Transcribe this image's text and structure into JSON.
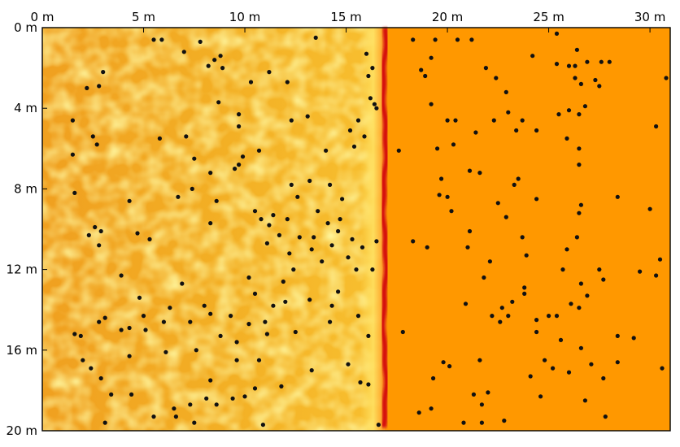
{
  "chart_data": {
    "type": "scatter",
    "title": "",
    "xlabel": "",
    "ylabel": "",
    "x_ticks": [
      "0 m",
      "5 m",
      "10 m",
      "15 m",
      "20 m",
      "25 m",
      "30 m"
    ],
    "y_ticks": [
      "0 m",
      "4 m",
      "8 m",
      "12 m",
      "16 m",
      "20 m"
    ],
    "xlim": [
      0,
      31
    ],
    "ylim": [
      0,
      20
    ],
    "y_direction": "down",
    "x_axis_position": "top",
    "grid": false,
    "background": {
      "kind": "wave-field",
      "left_region_colors": [
        "#f0a020",
        "#f5c030",
        "#ffd84a"
      ],
      "wavefront_x_m": 16.9,
      "wavefront_color": "#d41010",
      "right_region_color": "#ff9800"
    },
    "marker_color": "#111111",
    "points": [
      [
        5.5,
        0.6
      ],
      [
        5.9,
        0.6
      ],
      [
        7.8,
        0.7
      ],
      [
        13.5,
        0.5
      ],
      [
        7,
        1.2
      ],
      [
        8.8,
        1.4
      ],
      [
        8.5,
        1.6
      ],
      [
        8.2,
        1.9
      ],
      [
        8.9,
        2
      ],
      [
        11.2,
        2.2
      ],
      [
        3,
        2.2
      ],
      [
        2.8,
        2.9
      ],
      [
        2.2,
        3
      ],
      [
        10.3,
        2.7
      ],
      [
        12.1,
        2.7
      ],
      [
        16,
        1.3
      ],
      [
        16.3,
        2
      ],
      [
        16.1,
        2.4
      ],
      [
        16.2,
        3.5
      ],
      [
        16.4,
        3.8
      ],
      [
        16.5,
        4
      ],
      [
        8.7,
        3.7
      ],
      [
        9.7,
        4.3
      ],
      [
        12.3,
        4.6
      ],
      [
        9.7,
        4.9
      ],
      [
        15.6,
        4.6
      ],
      [
        13.1,
        4.4
      ],
      [
        15.2,
        5.1
      ],
      [
        15.9,
        5.4
      ],
      [
        15.4,
        5.9
      ],
      [
        1.5,
        4.6
      ],
      [
        2.5,
        5.4
      ],
      [
        2.7,
        5.8
      ],
      [
        1.5,
        6.3
      ],
      [
        5.8,
        5.5
      ],
      [
        7.1,
        5.4
      ],
      [
        7.5,
        6.5
      ],
      [
        8.3,
        7.2
      ],
      [
        9.5,
        7
      ],
      [
        9.7,
        6.8
      ],
      [
        9.9,
        6.4
      ],
      [
        10.7,
        6.1
      ],
      [
        14,
        6.1
      ],
      [
        13.2,
        7.6
      ],
      [
        14.2,
        7.8
      ],
      [
        12.3,
        7.8
      ],
      [
        12.6,
        8.4
      ],
      [
        6.7,
        8.4
      ],
      [
        7.4,
        8
      ],
      [
        4.3,
        8.6
      ],
      [
        1.6,
        8.2
      ],
      [
        8.6,
        8.6
      ],
      [
        10.5,
        9.1
      ],
      [
        11.4,
        9.3
      ],
      [
        11.2,
        9.8
      ],
      [
        12.1,
        9.5
      ],
      [
        11.7,
        10.3
      ],
      [
        12.7,
        10.4
      ],
      [
        13.4,
        10.4
      ],
      [
        13.6,
        9.1
      ],
      [
        14.1,
        9.7
      ],
      [
        14.7,
        9.5
      ],
      [
        14.8,
        8.5
      ],
      [
        14.6,
        10.1
      ],
      [
        15.3,
        10.5
      ],
      [
        15.8,
        10.9
      ],
      [
        16.5,
        10.6
      ],
      [
        2.6,
        9.9
      ],
      [
        2.9,
        10.1
      ],
      [
        2.3,
        10.3
      ],
      [
        4.7,
        10.2
      ],
      [
        8.3,
        9.7
      ],
      [
        10.8,
        9.5
      ],
      [
        11.1,
        10.7
      ],
      [
        13.3,
        11
      ],
      [
        14.3,
        10.8
      ],
      [
        5.3,
        10.5
      ],
      [
        2.8,
        10.8
      ],
      [
        12.2,
        11.2
      ],
      [
        13.8,
        11.6
      ],
      [
        15.1,
        11.4
      ],
      [
        15.5,
        12
      ],
      [
        16.3,
        12
      ],
      [
        12.4,
        12
      ],
      [
        3.9,
        12.3
      ],
      [
        6.9,
        12.7
      ],
      [
        10.2,
        12.4
      ],
      [
        11.9,
        12.6
      ],
      [
        10.5,
        13.2
      ],
      [
        12,
        13.6
      ],
      [
        14.6,
        13.1
      ],
      [
        4.8,
        13.4
      ],
      [
        6.3,
        13.9
      ],
      [
        8,
        13.8
      ],
      [
        11.4,
        13.8
      ],
      [
        13.2,
        13.5
      ],
      [
        14.3,
        13.8
      ],
      [
        1.6,
        15.2
      ],
      [
        1.9,
        15.3
      ],
      [
        2.8,
        14.6
      ],
      [
        3.1,
        14.4
      ],
      [
        3.9,
        15
      ],
      [
        4.3,
        14.9
      ],
      [
        5,
        14.3
      ],
      [
        5.1,
        15
      ],
      [
        6,
        14.6
      ],
      [
        7.3,
        14.6
      ],
      [
        8.3,
        14.2
      ],
      [
        9.3,
        14.3
      ],
      [
        10.2,
        14.7
      ],
      [
        11,
        14.6
      ],
      [
        11.1,
        15.2
      ],
      [
        12.5,
        15.1
      ],
      [
        14.2,
        14.6
      ],
      [
        15.6,
        14.3
      ],
      [
        16.1,
        15.3
      ],
      [
        8.8,
        15.3
      ],
      [
        9.6,
        15.6
      ],
      [
        7.6,
        16
      ],
      [
        6.1,
        16.1
      ],
      [
        4.3,
        16.3
      ],
      [
        2,
        16.5
      ],
      [
        2.4,
        16.9
      ],
      [
        9.6,
        16.5
      ],
      [
        10.7,
        16.5
      ],
      [
        13.3,
        17
      ],
      [
        15.1,
        16.7
      ],
      [
        15.7,
        17.6
      ],
      [
        16.1,
        17.7
      ],
      [
        2.9,
        17.4
      ],
      [
        3.4,
        18.2
      ],
      [
        4.4,
        18.2
      ],
      [
        8.3,
        17.5
      ],
      [
        10.5,
        17.9
      ],
      [
        11.8,
        17.8
      ],
      [
        10,
        18.3
      ],
      [
        9.4,
        18.4
      ],
      [
        8.1,
        18.4
      ],
      [
        8.6,
        18.7
      ],
      [
        6.5,
        18.9
      ],
      [
        7.3,
        18.7
      ],
      [
        5.5,
        19.3
      ],
      [
        6.6,
        19.3
      ],
      [
        7.5,
        19.6
      ],
      [
        3.1,
        19.6
      ],
      [
        10.9,
        19.7
      ],
      [
        16.6,
        19.7
      ],
      [
        18.3,
        0.6
      ],
      [
        19.4,
        0.6
      ],
      [
        20.5,
        0.6
      ],
      [
        21.2,
        0.6
      ],
      [
        25.4,
        0.3
      ],
      [
        26.4,
        1.1
      ],
      [
        24.2,
        1.4
      ],
      [
        26,
        1.9
      ],
      [
        26.3,
        1.9
      ],
      [
        26.9,
        1.7
      ],
      [
        27.6,
        1.7
      ],
      [
        28,
        1.7
      ],
      [
        19.2,
        1.5
      ],
      [
        18.7,
        2.1
      ],
      [
        18.9,
        2.4
      ],
      [
        21.9,
        2
      ],
      [
        22.4,
        2.5
      ],
      [
        25.4,
        1.8
      ],
      [
        27.3,
        2.6
      ],
      [
        27.5,
        2.9
      ],
      [
        26.6,
        2.8
      ],
      [
        26.3,
        2.5
      ],
      [
        30.8,
        2.5
      ],
      [
        22.9,
        3.2
      ],
      [
        19.2,
        3.8
      ],
      [
        20,
        4.6
      ],
      [
        20.4,
        4.6
      ],
      [
        22.3,
        4.6
      ],
      [
        23,
        4.2
      ],
      [
        23.7,
        4.6
      ],
      [
        25.5,
        4.3
      ],
      [
        26,
        4.1
      ],
      [
        26.8,
        3.9
      ],
      [
        26.5,
        4.3
      ],
      [
        30.3,
        4.9
      ],
      [
        19.5,
        6
      ],
      [
        20.3,
        5.8
      ],
      [
        21.4,
        5.2
      ],
      [
        23.4,
        5.1
      ],
      [
        24.4,
        5.1
      ],
      [
        25.9,
        5.5
      ],
      [
        26.5,
        6
      ],
      [
        26.5,
        6.8
      ],
      [
        17.6,
        6.1
      ],
      [
        21.1,
        7.1
      ],
      [
        21.6,
        7.2
      ],
      [
        19.7,
        7.5
      ],
      [
        23.5,
        7.5
      ],
      [
        23.3,
        7.8
      ],
      [
        19.6,
        8.3
      ],
      [
        20,
        8.4
      ],
      [
        22.5,
        8.7
      ],
      [
        24.4,
        8.5
      ],
      [
        26.6,
        8.8
      ],
      [
        26.5,
        9.2
      ],
      [
        28.4,
        8.4
      ],
      [
        30,
        9
      ],
      [
        20.2,
        9.1
      ],
      [
        22.9,
        9.4
      ],
      [
        21.1,
        10.1
      ],
      [
        23.7,
        10.4
      ],
      [
        26.4,
        10.4
      ],
      [
        18.3,
        10.6
      ],
      [
        19,
        10.9
      ],
      [
        21,
        10.9
      ],
      [
        25.9,
        11
      ],
      [
        22.1,
        11.6
      ],
      [
        23.9,
        11.3
      ],
      [
        25.7,
        12
      ],
      [
        27.5,
        12
      ],
      [
        27.7,
        12.5
      ],
      [
        30.5,
        11.5
      ],
      [
        29.5,
        12.1
      ],
      [
        30.3,
        12.3
      ],
      [
        21.8,
        12.4
      ],
      [
        23.8,
        12.9
      ],
      [
        23.8,
        13.2
      ],
      [
        26.6,
        12.7
      ],
      [
        26.9,
        13.3
      ],
      [
        20.9,
        13.7
      ],
      [
        22.7,
        13.9
      ],
      [
        23.2,
        13.6
      ],
      [
        26.5,
        13.9
      ],
      [
        26.1,
        13.7
      ],
      [
        22.2,
        14.3
      ],
      [
        23,
        14.3
      ],
      [
        22.6,
        14.6
      ],
      [
        24.4,
        14.5
      ],
      [
        25,
        14.3
      ],
      [
        25.4,
        14.3
      ],
      [
        24.4,
        15.1
      ],
      [
        25.6,
        15.5
      ],
      [
        26.6,
        15.9
      ],
      [
        28.4,
        15.3
      ],
      [
        29.2,
        15.4
      ],
      [
        17.8,
        15.1
      ],
      [
        19.8,
        16.6
      ],
      [
        20.1,
        16.8
      ],
      [
        21.6,
        16.5
      ],
      [
        24.8,
        16.5
      ],
      [
        25.2,
        16.9
      ],
      [
        26,
        17.1
      ],
      [
        27.1,
        16.7
      ],
      [
        28.4,
        16.6
      ],
      [
        30.6,
        16.9
      ],
      [
        19.3,
        17.4
      ],
      [
        24.1,
        17.3
      ],
      [
        27.7,
        17.4
      ],
      [
        22,
        18.1
      ],
      [
        21.3,
        18.2
      ],
      [
        24.6,
        18.3
      ],
      [
        26.8,
        18.5
      ],
      [
        21.7,
        18.7
      ],
      [
        18.6,
        19.1
      ],
      [
        19.2,
        18.9
      ],
      [
        20.8,
        19.6
      ],
      [
        21.7,
        19.6
      ],
      [
        22.8,
        19.5
      ],
      [
        27.8,
        19.3
      ]
    ]
  }
}
